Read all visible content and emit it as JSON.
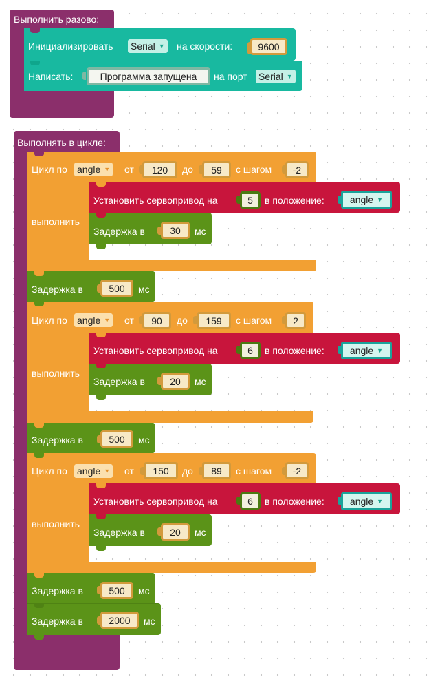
{
  "setup": {
    "header": "Выполнить разово:",
    "init": {
      "label": "Инициализировать",
      "port": "Serial",
      "speed_label": "на скорости:",
      "speed": "9600"
    },
    "write": {
      "label": "Написать:",
      "text": "Программа запущена",
      "port_label": "на порт",
      "port": "Serial"
    }
  },
  "loop": {
    "header": "Выполнять в цикле:",
    "loops": [
      {
        "for_label": "Цикл по",
        "var": "angle",
        "from_label": "от",
        "from": "120",
        "to_label": "до",
        "to": "59",
        "step_label": "с шагом",
        "step": "-2",
        "do_label": "выполнить",
        "servo": {
          "label": "Установить сервопривод на",
          "pin": "5",
          "pos_label": "в положение:",
          "var": "angle"
        },
        "delay": {
          "label": "Задержка в",
          "value": "30",
          "unit": "мс"
        }
      },
      {
        "for_label": "Цикл по",
        "var": "angle",
        "from_label": "от",
        "from": "90",
        "to_label": "до",
        "to": "159",
        "step_label": "с шагом",
        "step": "2",
        "do_label": "выполнить",
        "servo": {
          "label": "Установить сервопривод на",
          "pin": "6",
          "pos_label": "в положение:",
          "var": "angle"
        },
        "delay": {
          "label": "Задержка в",
          "value": "20",
          "unit": "мс"
        }
      },
      {
        "for_label": "Цикл по",
        "var": "angle",
        "from_label": "от",
        "from": "150",
        "to_label": "до",
        "to": "89",
        "step_label": "с шагом",
        "step": "-2",
        "do_label": "выполнить",
        "servo": {
          "label": "Установить сервопривод на",
          "pin": "6",
          "pos_label": "в положение:",
          "var": "angle"
        },
        "delay": {
          "label": "Задержка в",
          "value": "20",
          "unit": "мс"
        }
      }
    ],
    "delays": [
      {
        "label": "Задержка в",
        "value": "500",
        "unit": "мс"
      },
      {
        "label": "Задержка в",
        "value": "500",
        "unit": "мс"
      },
      {
        "label": "Задержка в",
        "value": "500",
        "unit": "мс"
      },
      {
        "label": "Задержка в",
        "value": "2000",
        "unit": "мс"
      }
    ]
  },
  "colors": {
    "control": "#8b2f6b",
    "serial": "#18b9a0",
    "loop": "#f2a033",
    "servo": "#c8153c",
    "delay": "#5b9318"
  }
}
